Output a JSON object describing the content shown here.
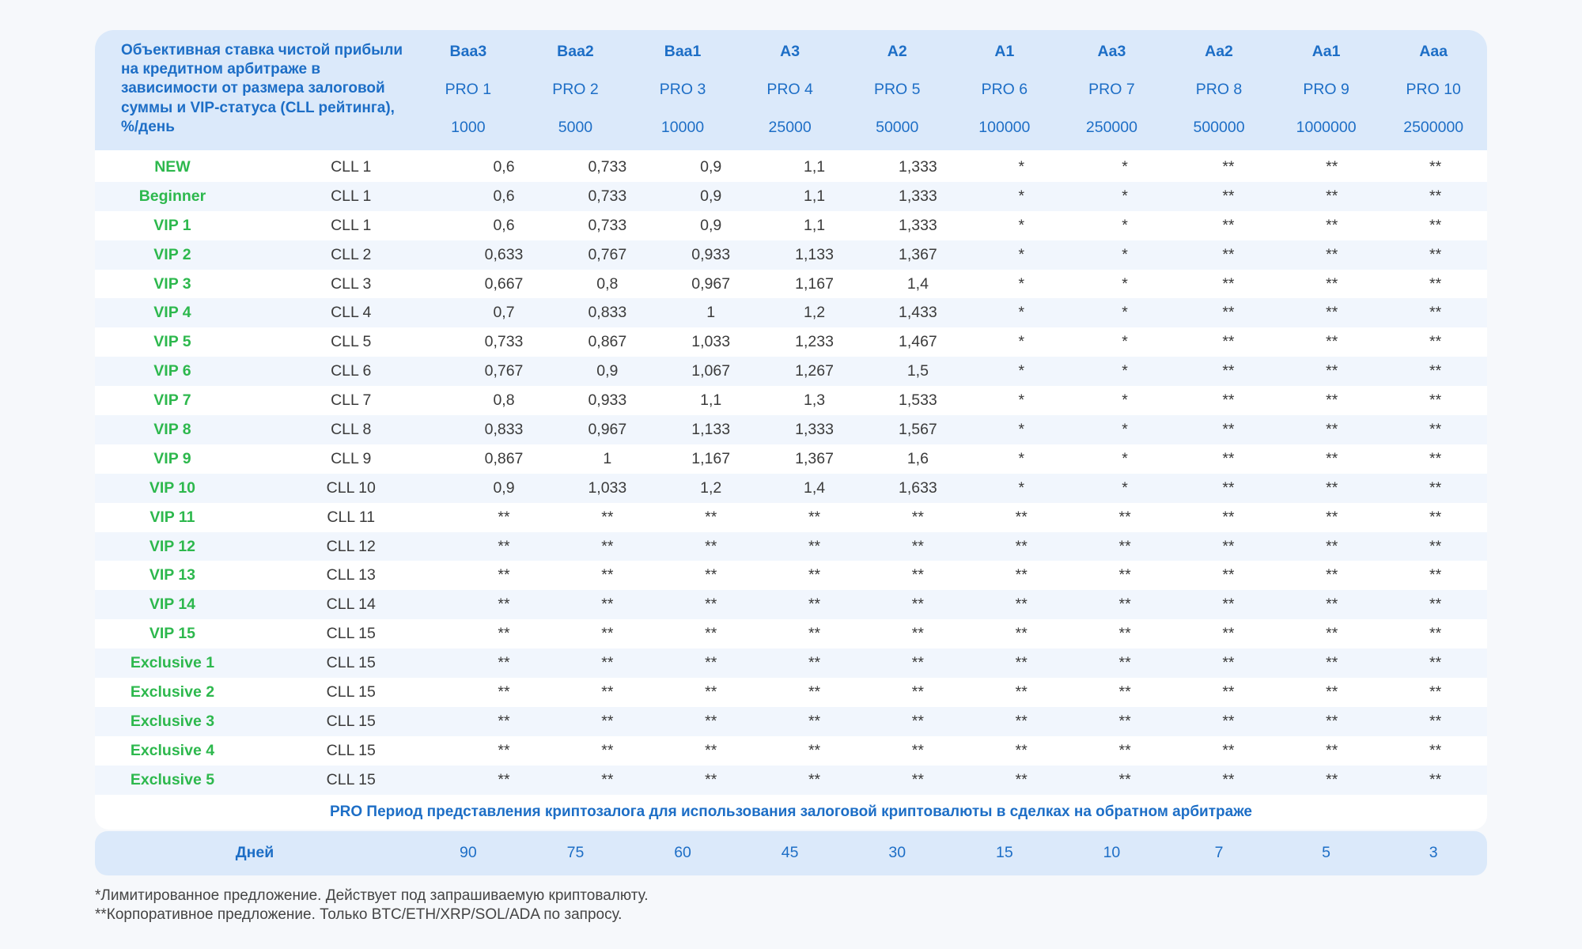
{
  "header": {
    "title": "Объективная ставка чистой прибыли на кредитном арбитраже в зависимости от размера залоговой суммы и VIP-статуса (CLL рейтинга), %/день",
    "columns": [
      {
        "rating": "Baa3",
        "pro": "PRO 1",
        "amount": "1000"
      },
      {
        "rating": "Baa2",
        "pro": "PRO 2",
        "amount": "5000"
      },
      {
        "rating": "Baa1",
        "pro": "PRO 3",
        "amount": "10000"
      },
      {
        "rating": "A3",
        "pro": "PRO 4",
        "amount": "25000"
      },
      {
        "rating": "A2",
        "pro": "PRO 5",
        "amount": "50000"
      },
      {
        "rating": "A1",
        "pro": "PRO 6",
        "amount": "100000"
      },
      {
        "rating": "Aa3",
        "pro": "PRO 7",
        "amount": "250000"
      },
      {
        "rating": "Aa2",
        "pro": "PRO 8",
        "amount": "500000"
      },
      {
        "rating": "Aa1",
        "pro": "PRO 9",
        "amount": "1000000"
      },
      {
        "rating": "Aaa",
        "pro": "PRO 10",
        "amount": "2500000"
      }
    ]
  },
  "rows": [
    {
      "status": "NEW",
      "cll": "CLL 1",
      "values": [
        "0,6",
        "0,733",
        "0,9",
        "1,1",
        "1,333",
        "*",
        "*",
        "**",
        "**",
        "**"
      ]
    },
    {
      "status": "Beginner",
      "cll": "CLL 1",
      "values": [
        "0,6",
        "0,733",
        "0,9",
        "1,1",
        "1,333",
        "*",
        "*",
        "**",
        "**",
        "**"
      ]
    },
    {
      "status": "VIP 1",
      "cll": "CLL 1",
      "values": [
        "0,6",
        "0,733",
        "0,9",
        "1,1",
        "1,333",
        "*",
        "*",
        "**",
        "**",
        "**"
      ]
    },
    {
      "status": "VIP 2",
      "cll": "CLL 2",
      "values": [
        "0,633",
        "0,767",
        "0,933",
        "1,133",
        "1,367",
        "*",
        "*",
        "**",
        "**",
        "**"
      ]
    },
    {
      "status": "VIP 3",
      "cll": "CLL 3",
      "values": [
        "0,667",
        "0,8",
        "0,967",
        "1,167",
        "1,4",
        "*",
        "*",
        "**",
        "**",
        "**"
      ]
    },
    {
      "status": "VIP 4",
      "cll": "CLL 4",
      "values": [
        "0,7",
        "0,833",
        "1",
        "1,2",
        "1,433",
        "*",
        "*",
        "**",
        "**",
        "**"
      ]
    },
    {
      "status": "VIP 5",
      "cll": "CLL 5",
      "values": [
        "0,733",
        "0,867",
        "1,033",
        "1,233",
        "1,467",
        "*",
        "*",
        "**",
        "**",
        "**"
      ]
    },
    {
      "status": "VIP 6",
      "cll": "CLL 6",
      "values": [
        "0,767",
        "0,9",
        "1,067",
        "1,267",
        "1,5",
        "*",
        "*",
        "**",
        "**",
        "**"
      ]
    },
    {
      "status": "VIP 7",
      "cll": "CLL 7",
      "values": [
        "0,8",
        "0,933",
        "1,1",
        "1,3",
        "1,533",
        "*",
        "*",
        "**",
        "**",
        "**"
      ]
    },
    {
      "status": "VIP 8",
      "cll": "CLL 8",
      "values": [
        "0,833",
        "0,967",
        "1,133",
        "1,333",
        "1,567",
        "*",
        "*",
        "**",
        "**",
        "**"
      ]
    },
    {
      "status": "VIP 9",
      "cll": "CLL 9",
      "values": [
        "0,867",
        "1",
        "1,167",
        "1,367",
        "1,6",
        "*",
        "*",
        "**",
        "**",
        "**"
      ]
    },
    {
      "status": "VIP 10",
      "cll": "CLL 10",
      "values": [
        "0,9",
        "1,033",
        "1,2",
        "1,4",
        "1,633",
        "*",
        "*",
        "**",
        "**",
        "**"
      ]
    },
    {
      "status": "VIP 11",
      "cll": "CLL 11",
      "values": [
        "**",
        "**",
        "**",
        "**",
        "**",
        "**",
        "**",
        "**",
        "**",
        "**"
      ]
    },
    {
      "status": "VIP 12",
      "cll": "CLL 12",
      "values": [
        "**",
        "**",
        "**",
        "**",
        "**",
        "**",
        "**",
        "**",
        "**",
        "**"
      ]
    },
    {
      "status": "VIP 13",
      "cll": "CLL 13",
      "values": [
        "**",
        "**",
        "**",
        "**",
        "**",
        "**",
        "**",
        "**",
        "**",
        "**"
      ]
    },
    {
      "status": "VIP 14",
      "cll": "CLL 14",
      "values": [
        "**",
        "**",
        "**",
        "**",
        "**",
        "**",
        "**",
        "**",
        "**",
        "**"
      ]
    },
    {
      "status": "VIP 15",
      "cll": "CLL 15",
      "values": [
        "**",
        "**",
        "**",
        "**",
        "**",
        "**",
        "**",
        "**",
        "**",
        "**"
      ]
    },
    {
      "status": "Exclusive 1",
      "cll": "CLL 15",
      "values": [
        "**",
        "**",
        "**",
        "**",
        "**",
        "**",
        "**",
        "**",
        "**",
        "**"
      ]
    },
    {
      "status": "Exclusive 2",
      "cll": "CLL 15",
      "values": [
        "**",
        "**",
        "**",
        "**",
        "**",
        "**",
        "**",
        "**",
        "**",
        "**"
      ]
    },
    {
      "status": "Exclusive 3",
      "cll": "CLL 15",
      "values": [
        "**",
        "**",
        "**",
        "**",
        "**",
        "**",
        "**",
        "**",
        "**",
        "**"
      ]
    },
    {
      "status": "Exclusive 4",
      "cll": "CLL 15",
      "values": [
        "**",
        "**",
        "**",
        "**",
        "**",
        "**",
        "**",
        "**",
        "**",
        "**"
      ]
    },
    {
      "status": "Exclusive 5",
      "cll": "CLL 15",
      "values": [
        "**",
        "**",
        "**",
        "**",
        "**",
        "**",
        "**",
        "**",
        "**",
        "**"
      ]
    }
  ],
  "period_caption": "PRO Период представления криптозалога для использования залоговой криптовалюты в сделках на обратном арбитраже",
  "days": {
    "label": "Дней",
    "values": [
      "90",
      "75",
      "60",
      "45",
      "30",
      "15",
      "10",
      "7",
      "5",
      "3"
    ]
  },
  "footnotes": [
    "*Лимитированное предложение. Действует под запрашиваемую криптовалюту.",
    "**Корпоративное предложение. Только BTC/ETH/XRP/SOL/ADA по запросу."
  ],
  "colors": {
    "accent_blue": "#1d6ec6",
    "header_bg": "#dbe9fa",
    "status_green": "#2db84d",
    "row_alt": "#f1f6fd"
  }
}
